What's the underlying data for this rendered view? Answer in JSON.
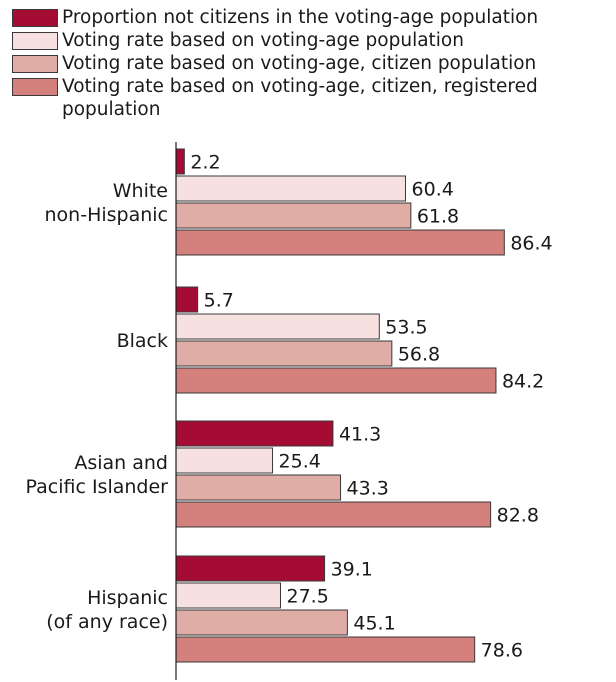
{
  "legend": [
    {
      "label": "Proportion not citizens in the voting-age population",
      "color": "#a50c34"
    },
    {
      "label": "Voting rate based on voting-age population",
      "color": "#f6e0e0"
    },
    {
      "label": "Voting rate based on voting-age, citizen population",
      "color": "#e0aca6"
    },
    {
      "label": "Voting rate based on voting-age, citizen, registered population",
      "color": "#d4807c"
    }
  ],
  "chart_data": {
    "type": "bar",
    "orientation": "horizontal",
    "categories": [
      [
        "White",
        "non-Hispanic"
      ],
      [
        "Black"
      ],
      [
        "Asian and",
        "Pacific Islander"
      ],
      [
        "Hispanic",
        "(of any race)"
      ]
    ],
    "series": [
      {
        "name": "Proportion not citizens in the voting-age population",
        "color": "#a50c34",
        "values": [
          2.2,
          5.7,
          41.3,
          39.1
        ]
      },
      {
        "name": "Voting rate based on voting-age population",
        "color": "#f6e0e0",
        "values": [
          60.4,
          53.5,
          25.4,
          27.5
        ]
      },
      {
        "name": "Voting rate based on voting-age, citizen population",
        "color": "#e0aca6",
        "values": [
          61.8,
          56.8,
          43.3,
          45.1
        ]
      },
      {
        "name": "Voting rate based on voting-age, citizen, registered population",
        "color": "#d4807c",
        "values": [
          86.4,
          84.2,
          82.8,
          78.6
        ]
      }
    ],
    "xlim": [
      0,
      100
    ],
    "legend_position": "top",
    "grid": false
  }
}
